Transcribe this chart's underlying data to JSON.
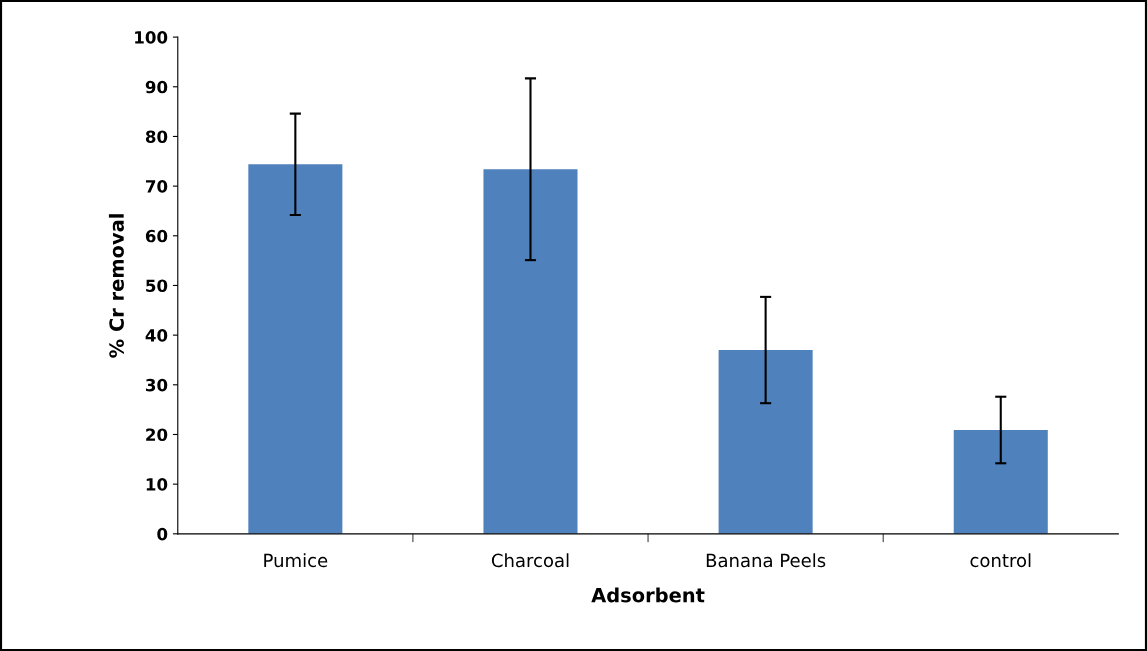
{
  "chart_data": {
    "type": "bar",
    "xlabel": "Adsorbent",
    "ylabel": "% Cr removal",
    "categories": [
      "Pumice",
      "Charcoal",
      "Banana Peels",
      "control"
    ],
    "values": [
      74.4,
      73.4,
      37.0,
      20.9
    ],
    "errors": [
      10.2,
      18.3,
      10.7,
      6.7
    ],
    "color": "#4f81bd",
    "ylim": [
      0,
      100
    ],
    "yticks": [
      0,
      10,
      20,
      30,
      40,
      50,
      60,
      70,
      80,
      90,
      100
    ],
    "grid": false,
    "legend": false
  }
}
